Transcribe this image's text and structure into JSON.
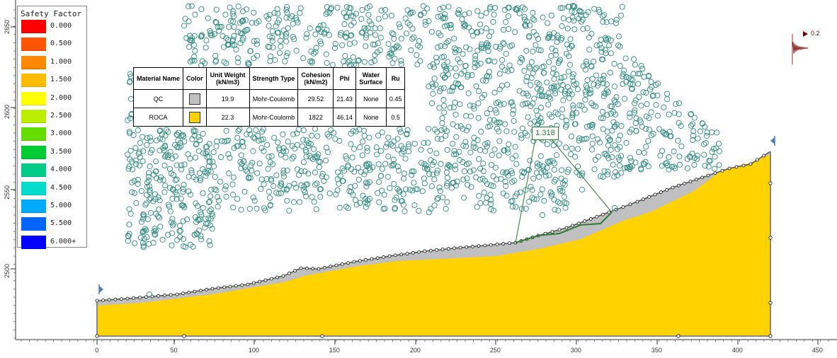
{
  "legend": {
    "title": "Safety Factor",
    "items": [
      {
        "label": "0.000",
        "color": "#ff0000"
      },
      {
        "label": "0.500",
        "color": "#ff5500"
      },
      {
        "label": "1.000",
        "color": "#ff8800"
      },
      {
        "label": "1.500",
        "color": "#ffbb00"
      },
      {
        "label": "2.000",
        "color": "#ffff00"
      },
      {
        "label": "2.500",
        "color": "#bbee00"
      },
      {
        "label": "3.000",
        "color": "#66dd00"
      },
      {
        "label": "3.500",
        "color": "#00cc33"
      },
      {
        "label": "4.000",
        "color": "#00cc88"
      },
      {
        "label": "4.500",
        "color": "#00ddcc"
      },
      {
        "label": "5.000",
        "color": "#00aaff"
      },
      {
        "label": "5.500",
        "color": "#0066ff"
      },
      {
        "label": "6.000+",
        "color": "#0000ff"
      }
    ]
  },
  "table": {
    "headers": [
      "Material Name",
      "Color",
      "Unit Weight (kN/m3)",
      "Strength Type",
      "Cohesion (kN/m2)",
      "Phi",
      "Water Surface",
      "Ru"
    ],
    "rows": [
      {
        "name": "QC",
        "color": "#c0c0c0",
        "unit_weight": "19.9",
        "strength_type": "Mohr-Coulomb",
        "cohesion": "29.52",
        "phi": "21.43",
        "water_surface": "None",
        "ru": "0.45"
      },
      {
        "name": "ROCA",
        "color": "#ffd200",
        "unit_weight": "22.3",
        "strength_type": "Mohr-Coulomb",
        "cohesion": "1822",
        "phi": "46.14",
        "water_surface": "None",
        "ru": "0.5"
      }
    ]
  },
  "analysis": {
    "min_safety_factor": "1.318",
    "seismic_coefficient": "0.2",
    "point_color": "#2e8b80",
    "soil_color": "#c0c0c0",
    "rock_color": "#ffd200",
    "surface_color": "#2e7d32"
  },
  "axes": {
    "x_ticks": [
      "0",
      "50",
      "100",
      "150",
      "200",
      "250",
      "300",
      "350",
      "400",
      "450"
    ],
    "y_ticks": [
      "2650",
      "2600",
      "2550",
      "2500"
    ]
  }
}
